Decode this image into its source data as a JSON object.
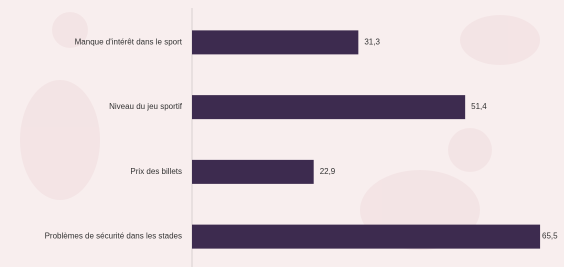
{
  "chart_data": {
    "type": "bar",
    "orientation": "horizontal",
    "categories": [
      "Manque d'intérêt dans le sport",
      "Niveau du jeu sportif",
      "Prix des billets",
      "Problèmes de sécurité dans les stades"
    ],
    "values": [
      31.3,
      51.4,
      22.9,
      65.5
    ],
    "value_labels": [
      "31,3",
      "51,4",
      "22,9",
      "65,5"
    ],
    "color": "#3d2b4f",
    "xlim": [
      0,
      70
    ]
  }
}
